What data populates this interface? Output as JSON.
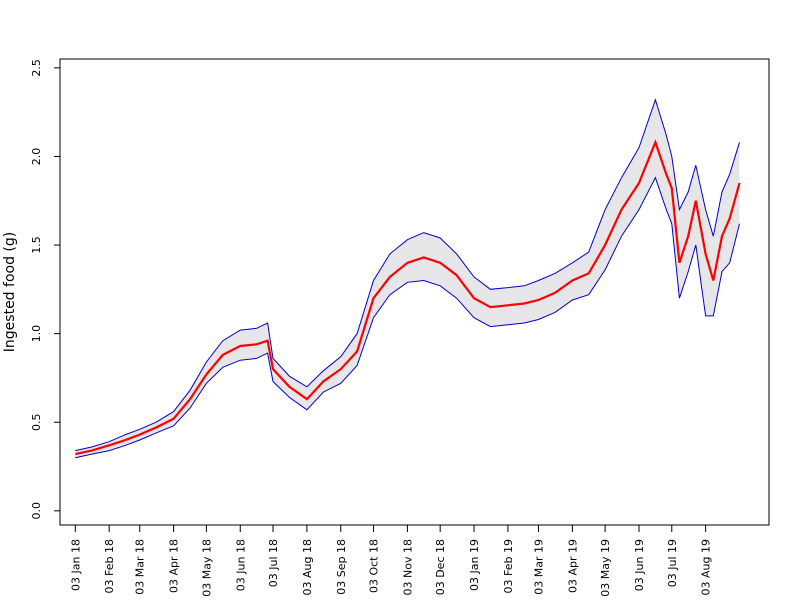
{
  "chart_data": {
    "type": "line",
    "title": "",
    "xlabel": "",
    "ylabel": "Ingested food (g)",
    "xlim": [
      "2017-12-20",
      "2019-09-30"
    ],
    "ylim": [
      -0.08,
      2.55
    ],
    "yticks": [
      0.0,
      0.5,
      1.0,
      1.5,
      2.0,
      2.5
    ],
    "ytick_labels": [
      "0.0",
      "0.5",
      "1.0",
      "1.5",
      "2.0",
      "2.5"
    ],
    "xticks": [
      "2018-01-03",
      "2018-02-03",
      "2018-03-03",
      "2018-04-03",
      "2018-05-03",
      "2018-06-03",
      "2018-07-03",
      "2018-08-03",
      "2018-09-03",
      "2018-10-03",
      "2018-11-03",
      "2018-12-03",
      "2019-01-03",
      "2019-02-03",
      "2019-03-03",
      "2019-04-03",
      "2019-05-03",
      "2019-06-03",
      "2019-07-03",
      "2019-08-03"
    ],
    "xtick_labels": [
      "03 Jan 18",
      "03 Feb 18",
      "03 Mar 18",
      "03 Apr 18",
      "03 May 18",
      "03 Jun 18",
      "03 Jul 18",
      "03 Aug 18",
      "03 Sep 18",
      "03 Oct 18",
      "03 Nov 18",
      "03 Dec 18",
      "03 Jan 19",
      "03 Feb 19",
      "03 Mar 19",
      "03 Apr 19",
      "03 May 19",
      "03 Jun 19",
      "03 Jul 19",
      "03 Aug 19"
    ],
    "grid": false,
    "legend": "none",
    "colors": {
      "mean": "#ff0000",
      "bounds": "#0000cc",
      "band_fill": "#e6e6e8"
    },
    "series": [
      {
        "role": "mean",
        "x": [
          "2018-01-03",
          "2018-01-18",
          "2018-02-03",
          "2018-02-18",
          "2018-03-03",
          "2018-03-18",
          "2018-04-03",
          "2018-04-18",
          "2018-05-03",
          "2018-05-18",
          "2018-06-03",
          "2018-06-18",
          "2018-06-28",
          "2018-07-03",
          "2018-07-18",
          "2018-08-03",
          "2018-08-18",
          "2018-09-03",
          "2018-09-18",
          "2018-10-03",
          "2018-10-18",
          "2018-11-03",
          "2018-11-18",
          "2018-12-03",
          "2018-12-18",
          "2019-01-03",
          "2019-01-18",
          "2019-02-03",
          "2019-02-18",
          "2019-03-03",
          "2019-03-18",
          "2019-04-03",
          "2019-04-18",
          "2019-05-03",
          "2019-05-18",
          "2019-06-03",
          "2019-06-18",
          "2019-06-28",
          "2019-07-03",
          "2019-07-10",
          "2019-07-18",
          "2019-07-25",
          "2019-08-03",
          "2019-08-10",
          "2019-08-18",
          "2019-08-25",
          "2019-09-03"
        ],
        "y": [
          0.32,
          0.34,
          0.37,
          0.4,
          0.43,
          0.47,
          0.52,
          0.63,
          0.77,
          0.88,
          0.93,
          0.94,
          0.96,
          0.8,
          0.7,
          0.63,
          0.73,
          0.8,
          0.9,
          1.2,
          1.32,
          1.4,
          1.43,
          1.4,
          1.33,
          1.2,
          1.15,
          1.16,
          1.17,
          1.19,
          1.23,
          1.3,
          1.34,
          1.5,
          1.7,
          1.85,
          2.08,
          1.9,
          1.82,
          1.4,
          1.55,
          1.75,
          1.45,
          1.3,
          1.55,
          1.65,
          1.85
        ]
      },
      {
        "role": "upper",
        "x": [
          "2018-01-03",
          "2018-01-18",
          "2018-02-03",
          "2018-02-18",
          "2018-03-03",
          "2018-03-18",
          "2018-04-03",
          "2018-04-18",
          "2018-05-03",
          "2018-05-18",
          "2018-06-03",
          "2018-06-18",
          "2018-06-28",
          "2018-07-03",
          "2018-07-18",
          "2018-08-03",
          "2018-08-18",
          "2018-09-03",
          "2018-09-18",
          "2018-10-03",
          "2018-10-18",
          "2018-11-03",
          "2018-11-18",
          "2018-12-03",
          "2018-12-18",
          "2019-01-03",
          "2019-01-18",
          "2019-02-03",
          "2019-02-18",
          "2019-03-03",
          "2019-03-18",
          "2019-04-03",
          "2019-04-18",
          "2019-05-03",
          "2019-05-18",
          "2019-06-03",
          "2019-06-18",
          "2019-06-28",
          "2019-07-03",
          "2019-07-10",
          "2019-07-18",
          "2019-07-25",
          "2019-08-03",
          "2019-08-10",
          "2019-08-18",
          "2019-08-25",
          "2019-09-03"
        ],
        "y": [
          0.34,
          0.36,
          0.39,
          0.43,
          0.46,
          0.5,
          0.56,
          0.68,
          0.84,
          0.96,
          1.02,
          1.03,
          1.06,
          0.86,
          0.76,
          0.7,
          0.79,
          0.87,
          1.0,
          1.3,
          1.45,
          1.53,
          1.57,
          1.54,
          1.45,
          1.32,
          1.25,
          1.26,
          1.27,
          1.3,
          1.34,
          1.4,
          1.46,
          1.7,
          1.88,
          2.05,
          2.32,
          2.12,
          2.0,
          1.7,
          1.8,
          1.95,
          1.7,
          1.55,
          1.8,
          1.9,
          2.08
        ]
      },
      {
        "role": "lower",
        "x": [
          "2018-01-03",
          "2018-01-18",
          "2018-02-03",
          "2018-02-18",
          "2018-03-03",
          "2018-03-18",
          "2018-04-03",
          "2018-04-18",
          "2018-05-03",
          "2018-05-18",
          "2018-06-03",
          "2018-06-18",
          "2018-06-28",
          "2018-07-03",
          "2018-07-18",
          "2018-08-03",
          "2018-08-18",
          "2018-09-03",
          "2018-09-18",
          "2018-10-03",
          "2018-10-18",
          "2018-11-03",
          "2018-11-18",
          "2018-12-03",
          "2018-12-18",
          "2019-01-03",
          "2019-01-18",
          "2019-02-03",
          "2019-02-18",
          "2019-03-03",
          "2019-03-18",
          "2019-04-03",
          "2019-04-18",
          "2019-05-03",
          "2019-05-18",
          "2019-06-03",
          "2019-06-18",
          "2019-06-28",
          "2019-07-03",
          "2019-07-10",
          "2019-07-18",
          "2019-07-25",
          "2019-08-03",
          "2019-08-10",
          "2019-08-18",
          "2019-08-25",
          "2019-09-03"
        ],
        "y": [
          0.3,
          0.32,
          0.34,
          0.37,
          0.4,
          0.44,
          0.48,
          0.58,
          0.72,
          0.81,
          0.85,
          0.86,
          0.89,
          0.73,
          0.64,
          0.57,
          0.67,
          0.72,
          0.82,
          1.09,
          1.22,
          1.29,
          1.3,
          1.27,
          1.2,
          1.09,
          1.04,
          1.05,
          1.06,
          1.08,
          1.12,
          1.19,
          1.22,
          1.36,
          1.55,
          1.7,
          1.88,
          1.7,
          1.62,
          1.2,
          1.35,
          1.5,
          1.1,
          1.1,
          1.35,
          1.4,
          1.62
        ]
      }
    ]
  }
}
